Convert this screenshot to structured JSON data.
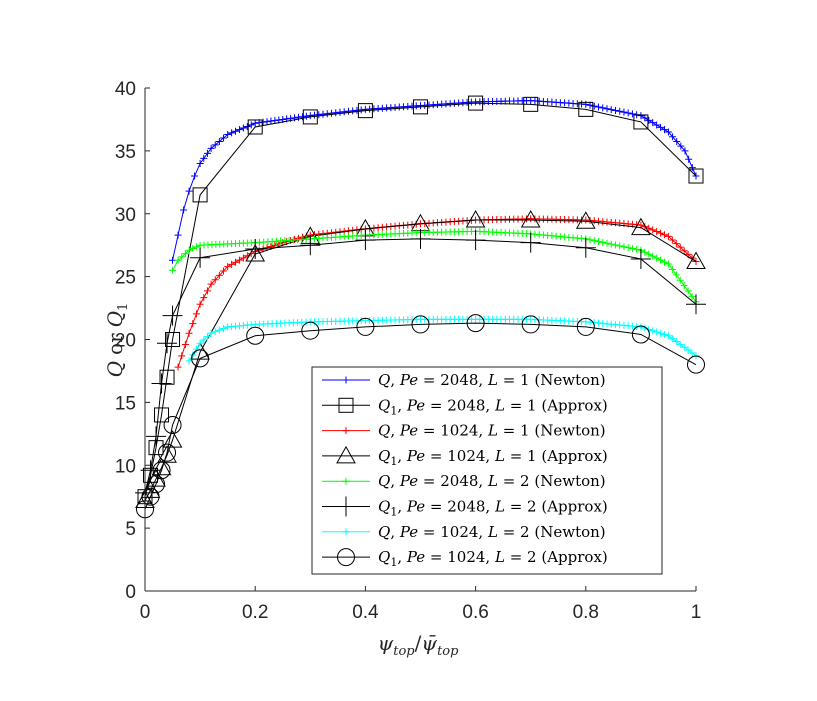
{
  "chart_data": {
    "type": "line",
    "xlabel": "ψtop/ψ̄top",
    "ylabel": "Q or Q1",
    "xlim": [
      0,
      1
    ],
    "ylim": [
      0,
      40
    ],
    "xticks": [
      "0",
      "0.2",
      "0.4",
      "0.6",
      "0.8",
      "1"
    ],
    "yticks": [
      "0",
      "5",
      "10",
      "15",
      "20",
      "25",
      "30",
      "35",
      "40"
    ],
    "grid": false,
    "legend_position": "bottom-right",
    "series": [
      {
        "name": "Q, Pe = 2048, L = 1 (Newton)",
        "color": "#0000ff",
        "marker": "plus-small",
        "x": [
          0.05,
          0.06,
          0.07,
          0.08,
          0.09,
          0.1,
          0.12,
          0.15,
          0.2,
          0.25,
          0.3,
          0.4,
          0.5,
          0.6,
          0.7,
          0.8,
          0.9,
          0.95,
          0.98,
          1.0
        ],
        "y": [
          26.3,
          28.3,
          30.3,
          31.8,
          33.0,
          34.0,
          35.2,
          36.3,
          37.2,
          37.5,
          37.8,
          38.3,
          38.6,
          38.9,
          39.0,
          38.7,
          37.8,
          36.5,
          35.0,
          33.0
        ]
      },
      {
        "name": "Q1, Pe = 2048, L = 1 (Approx)",
        "color": "#000000",
        "marker": "square",
        "x": [
          0,
          0.01,
          0.02,
          0.03,
          0.04,
          0.05,
          0.1,
          0.2,
          0.3,
          0.4,
          0.5,
          0.6,
          0.7,
          0.8,
          0.9,
          1.0
        ],
        "y": [
          7.5,
          9.2,
          11.4,
          14.0,
          17.0,
          20.0,
          31.5,
          36.9,
          37.7,
          38.2,
          38.5,
          38.8,
          38.7,
          38.3,
          37.3,
          33.0
        ]
      },
      {
        "name": "Q, Pe = 1024, L = 1 (Newton)",
        "color": "#ff0000",
        "marker": "plus-small",
        "x": [
          0.06,
          0.08,
          0.1,
          0.12,
          0.15,
          0.2,
          0.25,
          0.3,
          0.4,
          0.5,
          0.6,
          0.7,
          0.8,
          0.9,
          0.95,
          1.0
        ],
        "y": [
          17.8,
          20.5,
          22.8,
          24.4,
          25.8,
          27.0,
          27.7,
          28.3,
          28.8,
          29.2,
          29.5,
          29.6,
          29.5,
          29.1,
          28.2,
          26.2
        ]
      },
      {
        "name": "Q1, Pe = 1024, L = 1 (Approx)",
        "color": "#000000",
        "marker": "triangle",
        "x": [
          0,
          0.01,
          0.02,
          0.03,
          0.04,
          0.05,
          0.1,
          0.2,
          0.3,
          0.4,
          0.5,
          0.6,
          0.7,
          0.8,
          0.9,
          1.0
        ],
        "y": [
          7.2,
          8.0,
          8.9,
          9.8,
          10.8,
          12.0,
          19.0,
          26.8,
          28.2,
          28.8,
          29.2,
          29.5,
          29.5,
          29.4,
          28.9,
          26.2
        ]
      },
      {
        "name": "Q, Pe = 2048, L = 2 (Newton)",
        "color": "#00ff00",
        "marker": "plus-small",
        "x": [
          0.05,
          0.06,
          0.08,
          0.1,
          0.15,
          0.2,
          0.3,
          0.4,
          0.5,
          0.6,
          0.7,
          0.8,
          0.9,
          0.95,
          1.0
        ],
        "y": [
          25.5,
          26.3,
          27.1,
          27.5,
          27.6,
          27.7,
          28.0,
          28.3,
          28.5,
          28.6,
          28.4,
          28.0,
          27.1,
          26.0,
          23.0
        ]
      },
      {
        "name": "Q1, Pe = 2048, L = 2 (Approx)",
        "color": "#000000",
        "marker": "plus",
        "x": [
          0,
          0.01,
          0.02,
          0.03,
          0.04,
          0.05,
          0.1,
          0.2,
          0.3,
          0.4,
          0.5,
          0.6,
          0.7,
          0.8,
          0.9,
          1.0
        ],
        "y": [
          7.8,
          9.6,
          12.3,
          16.5,
          19.7,
          21.9,
          26.5,
          27.2,
          27.5,
          27.9,
          28.0,
          27.9,
          27.7,
          27.3,
          26.4,
          22.8
        ]
      },
      {
        "name": "Q, Pe = 1024, L = 2 (Newton)",
        "color": "#00ffff",
        "marker": "plus-small",
        "x": [
          0.08,
          0.1,
          0.12,
          0.15,
          0.2,
          0.3,
          0.4,
          0.5,
          0.6,
          0.7,
          0.8,
          0.9,
          0.95,
          1.0
        ],
        "y": [
          18.3,
          19.7,
          20.5,
          21.0,
          21.2,
          21.4,
          21.5,
          21.6,
          21.6,
          21.6,
          21.4,
          21.0,
          20.3,
          18.7
        ]
      },
      {
        "name": "Q1, Pe = 1024, L = 2 (Approx)",
        "color": "#000000",
        "marker": "circle",
        "x": [
          0,
          0.01,
          0.02,
          0.03,
          0.04,
          0.05,
          0.1,
          0.2,
          0.3,
          0.4,
          0.5,
          0.6,
          0.7,
          0.8,
          0.9,
          1.0
        ],
        "y": [
          6.5,
          7.5,
          8.5,
          9.6,
          11.0,
          13.2,
          18.5,
          20.3,
          20.7,
          21.0,
          21.2,
          21.3,
          21.2,
          21.0,
          20.4,
          18.0
        ]
      }
    ]
  },
  "legend": [
    {
      "q": "Q",
      "sub": "",
      "pe_label": "Pe",
      "pe": "2048",
      "l_label": "L",
      "l": "1",
      "method": "(Newton)"
    },
    {
      "q": "Q",
      "sub": "1",
      "pe_label": "Pe",
      "pe": "2048",
      "l_label": "L",
      "l": "1",
      "method": "(Approx)"
    },
    {
      "q": "Q",
      "sub": "",
      "pe_label": "Pe",
      "pe": "1024",
      "l_label": "L",
      "l": "1",
      "method": "(Newton)"
    },
    {
      "q": "Q",
      "sub": "1",
      "pe_label": "Pe",
      "pe": "1024",
      "l_label": "L",
      "l": "1",
      "method": "(Approx)"
    },
    {
      "q": "Q",
      "sub": "",
      "pe_label": "Pe",
      "pe": "2048",
      "l_label": "L",
      "l": "2",
      "method": "(Newton)"
    },
    {
      "q": "Q",
      "sub": "1",
      "pe_label": "Pe",
      "pe": "2048",
      "l_label": "L",
      "l": "2",
      "method": "(Approx)"
    },
    {
      "q": "Q",
      "sub": "",
      "pe_label": "Pe",
      "pe": "1024",
      "l_label": "L",
      "l": "2",
      "method": "(Newton)"
    },
    {
      "q": "Q",
      "sub": "1",
      "pe_label": "Pe",
      "pe": "1024",
      "l_label": "L",
      "l": "2",
      "method": "(Approx)"
    }
  ],
  "axis_labels": {
    "x": {
      "psi": "ψ",
      "sub": "top",
      "slash": "/",
      "bar_psi": "ψ̄",
      "bar_sub": "top"
    },
    "y": {
      "q": "Q",
      "or": "or",
      "q1": "Q",
      "q1_sub": "1"
    }
  }
}
